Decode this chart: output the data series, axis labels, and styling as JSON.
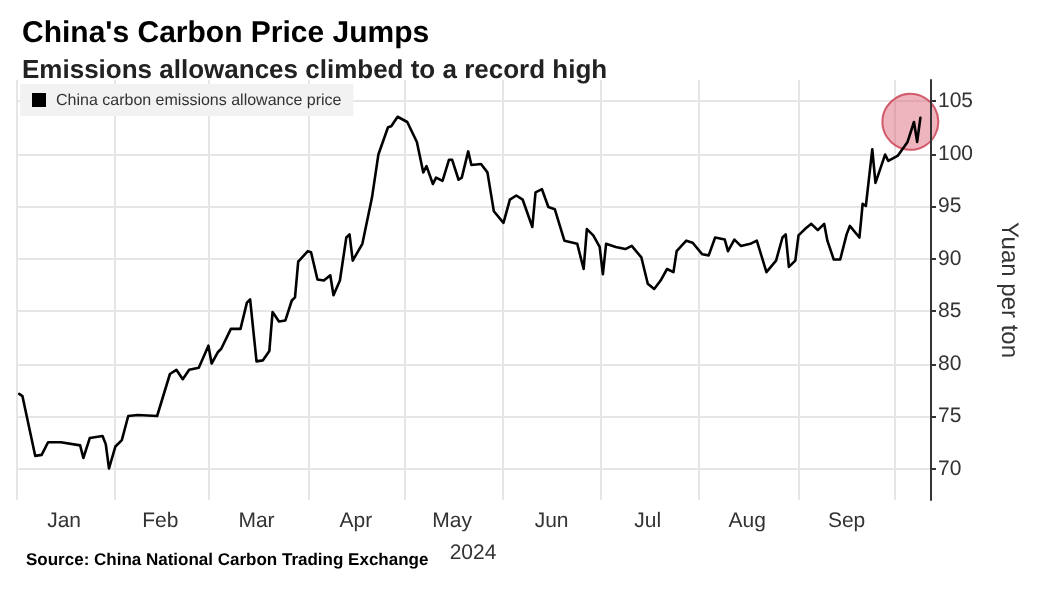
{
  "chart_data": {
    "type": "line",
    "title": "China's Carbon Price Jumps",
    "subtitle": "Emissions allowances climbed to a record high",
    "xlabel": "2024",
    "ylabel": "Yuan per ton",
    "x": [
      "2024-01-02",
      "2024-01-03",
      "2024-01-07",
      "2024-01-09",
      "2024-01-11",
      "2024-01-15",
      "2024-01-21",
      "2024-01-22",
      "2024-01-24",
      "2024-01-28",
      "2024-01-29",
      "2024-01-30",
      "2024-02-01",
      "2024-02-03",
      "2024-02-05",
      "2024-02-08",
      "2024-02-14",
      "2024-02-18",
      "2024-02-20",
      "2024-02-22",
      "2024-02-24",
      "2024-02-27",
      "2024-03-01",
      "2024-03-02",
      "2024-03-04",
      "2024-03-05",
      "2024-03-08",
      "2024-03-11",
      "2024-03-13",
      "2024-03-14",
      "2024-03-16",
      "2024-03-18",
      "2024-03-20",
      "2024-03-21",
      "2024-03-23",
      "2024-03-25",
      "2024-03-27",
      "2024-03-28",
      "2024-03-29",
      "2024-04-01",
      "2024-04-02",
      "2024-04-04",
      "2024-04-06",
      "2024-04-08",
      "2024-04-09",
      "2024-04-11",
      "2024-04-13",
      "2024-04-14",
      "2024-04-15",
      "2024-04-18",
      "2024-04-21",
      "2024-04-23",
      "2024-04-26",
      "2024-04-27",
      "2024-04-29",
      "2024-05-02",
      "2024-05-05",
      "2024-05-07",
      "2024-05-08",
      "2024-05-10",
      "2024-05-11",
      "2024-05-13",
      "2024-05-15",
      "2024-05-16",
      "2024-05-18",
      "2024-05-19",
      "2024-05-21",
      "2024-05-22",
      "2024-05-25",
      "2024-05-27",
      "2024-05-29",
      "2024-06-01",
      "2024-06-03",
      "2024-06-05",
      "2024-06-07",
      "2024-06-10",
      "2024-06-11",
      "2024-06-13",
      "2024-06-15",
      "2024-06-17",
      "2024-06-20",
      "2024-06-24",
      "2024-06-26",
      "2024-06-27",
      "2024-06-29",
      "2024-07-01",
      "2024-07-02",
      "2024-07-03",
      "2024-07-06",
      "2024-07-09",
      "2024-07-11",
      "2024-07-14",
      "2024-07-16",
      "2024-07-18",
      "2024-07-20",
      "2024-07-22",
      "2024-07-24",
      "2024-07-25",
      "2024-07-28",
      "2024-07-30",
      "2024-08-02",
      "2024-08-04",
      "2024-08-06",
      "2024-08-09",
      "2024-08-10",
      "2024-08-12",
      "2024-08-14",
      "2024-08-17",
      "2024-08-19",
      "2024-08-22",
      "2024-08-25",
      "2024-08-27",
      "2024-08-28",
      "2024-08-29",
      "2024-08-31",
      "2024-09-01",
      "2024-09-03",
      "2024-09-05",
      "2024-09-07",
      "2024-09-09",
      "2024-09-10",
      "2024-09-12",
      "2024-09-14",
      "2024-09-16",
      "2024-09-17",
      "2024-09-20",
      "2024-09-21",
      "2024-09-22",
      "2024-09-24",
      "2024-09-25",
      "2024-09-28",
      "2024-09-29",
      "2024-10-02",
      "2024-10-05",
      "2024-10-07",
      "2024-10-08",
      "2024-10-09"
    ],
    "series": [
      {
        "name": "China carbon emissions allowance price",
        "color": "#000000",
        "values": [
          77.1,
          76.9,
          71.2,
          71.3,
          72.5,
          72.5,
          72.2,
          71.0,
          72.9,
          73.1,
          72.3,
          70.0,
          72.1,
          72.7,
          75.0,
          75.1,
          75.0,
          79.0,
          79.4,
          78.5,
          79.4,
          79.6,
          81.7,
          80.0,
          81.1,
          81.4,
          83.3,
          83.3,
          85.8,
          86.1,
          80.2,
          80.3,
          81.2,
          84.9,
          84.0,
          84.1,
          86.0,
          86.3,
          89.7,
          90.7,
          90.6,
          88.0,
          87.9,
          88.4,
          86.5,
          87.9,
          92.0,
          92.3,
          89.8,
          91.4,
          95.8,
          99.9,
          102.5,
          102.6,
          103.5,
          103.0,
          101.1,
          98.2,
          98.8,
          97.1,
          97.7,
          97.4,
          99.4,
          99.4,
          97.5,
          97.7,
          100.2,
          98.9,
          99.0,
          98.2,
          94.5,
          93.4,
          95.6,
          96.0,
          95.6,
          93.0,
          96.3,
          96.6,
          94.9,
          94.7,
          91.7,
          91.4,
          89.0,
          92.8,
          92.2,
          91.1,
          88.5,
          91.4,
          91.1,
          90.9,
          91.2,
          90.1,
          87.6,
          87.1,
          87.9,
          89.0,
          88.7,
          90.7,
          91.7,
          91.5,
          90.4,
          90.3,
          92.0,
          91.8,
          90.7,
          91.8,
          91.2,
          91.4,
          91.7,
          88.7,
          89.8,
          92.0,
          92.3,
          89.2,
          89.8,
          92.2,
          92.8,
          93.3,
          92.7,
          93.3,
          91.7,
          89.9,
          89.9,
          92.3,
          93.1,
          92.0,
          95.2,
          95.0,
          100.4,
          97.2,
          99.9,
          99.3,
          99.8,
          101.1,
          103.0,
          101.1,
          103.4
        ]
      }
    ],
    "ylim": [
      67,
      107
    ],
    "yticks": [
      70,
      75,
      80,
      85,
      90,
      95,
      100,
      105
    ],
    "xlim": [
      "2024-01-01",
      "2024-10-12"
    ],
    "xticks": [
      {
        "value": "2024-01-01",
        "label": null
      },
      {
        "value": "2024-01-16",
        "label": "Jan"
      },
      {
        "value": "2024-02-01",
        "label": null
      },
      {
        "value": "2024-02-15",
        "label": "Feb"
      },
      {
        "value": "2024-03-01",
        "label": null
      },
      {
        "value": "2024-03-16",
        "label": "Mar"
      },
      {
        "value": "2024-04-01",
        "label": null
      },
      {
        "value": "2024-04-16",
        "label": "Apr"
      },
      {
        "value": "2024-05-01",
        "label": null
      },
      {
        "value": "2024-05-16",
        "label": "May"
      },
      {
        "value": "2024-06-01",
        "label": null
      },
      {
        "value": "2024-06-16",
        "label": "Jun"
      },
      {
        "value": "2024-07-01",
        "label": null
      },
      {
        "value": "2024-07-16",
        "label": "Jul"
      },
      {
        "value": "2024-08-01",
        "label": null
      },
      {
        "value": "2024-08-16",
        "label": "Aug"
      },
      {
        "value": "2024-09-01",
        "label": null
      },
      {
        "value": "2024-09-16",
        "label": "Sep"
      },
      {
        "value": "2024-10-01",
        "label": null
      }
    ],
    "grid": true,
    "legend": "top left",
    "marker": "none",
    "line_style": "solid",
    "annotations": [
      "Source: China National Carbon Trading Exchange"
    ]
  }
}
